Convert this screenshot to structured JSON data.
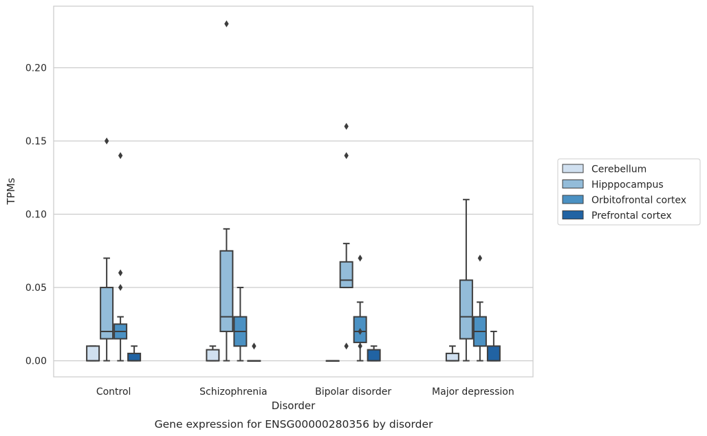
{
  "chart_data": {
    "type": "box",
    "caption": "Gene expression for ENSG00000280356 by disorder",
    "xlabel": "Disorder",
    "ylabel": "TPMs",
    "ylim": [
      -0.011,
      0.242
    ],
    "yticks": [
      "0.00",
      "0.05",
      "0.10",
      "0.15",
      "0.20"
    ],
    "grid": true,
    "legend_position": "right-center",
    "categories": [
      "Control",
      "Schizophrenia",
      "Bipolar disorder",
      "Major depression"
    ],
    "series": [
      {
        "name": "Cerebellum",
        "color": "#d0e0f0",
        "boxes": [
          {
            "q1": 0.0,
            "median": 0.0,
            "q3": 0.01,
            "whisker_low": 0.0,
            "whisker_high": 0.01,
            "outliers": []
          },
          {
            "q1": 0.0,
            "median": 0.0,
            "q3": 0.0075,
            "whisker_low": 0.0,
            "whisker_high": 0.01,
            "outliers": []
          },
          {
            "q1": 0.0,
            "median": 0.0,
            "q3": 0.0,
            "whisker_low": 0.0,
            "whisker_high": 0.0,
            "outliers": []
          },
          {
            "q1": 0.0,
            "median": 0.0,
            "q3": 0.005,
            "whisker_low": 0.0,
            "whisker_high": 0.01,
            "outliers": []
          }
        ]
      },
      {
        "name": "Hipppocampus",
        "color": "#93bcd9",
        "boxes": [
          {
            "q1": 0.015,
            "median": 0.02,
            "q3": 0.05,
            "whisker_low": 0.0,
            "whisker_high": 0.07,
            "outliers": [
              0.15
            ]
          },
          {
            "q1": 0.02,
            "median": 0.03,
            "q3": 0.075,
            "whisker_low": 0.0,
            "whisker_high": 0.09,
            "outliers": [
              0.23
            ]
          },
          {
            "q1": 0.05,
            "median": 0.055,
            "q3": 0.0675,
            "whisker_low": 0.05,
            "whisker_high": 0.08,
            "outliers": [
              0.16,
              0.14,
              0.01
            ]
          },
          {
            "q1": 0.015,
            "median": 0.03,
            "q3": 0.055,
            "whisker_low": 0.0,
            "whisker_high": 0.11,
            "outliers": []
          }
        ]
      },
      {
        "name": "Orbitofrontal cortex",
        "color": "#4b91c3",
        "boxes": [
          {
            "q1": 0.015,
            "median": 0.02,
            "q3": 0.025,
            "whisker_low": 0.0,
            "whisker_high": 0.03,
            "outliers": [
              0.14,
              0.06,
              0.05
            ]
          },
          {
            "q1": 0.01,
            "median": 0.02,
            "q3": 0.03,
            "whisker_low": 0.0,
            "whisker_high": 0.05,
            "outliers": []
          },
          {
            "q1": 0.0125,
            "median": 0.02,
            "q3": 0.03,
            "whisker_low": 0.0,
            "whisker_high": 0.04,
            "outliers": [
              0.07,
              0.02,
              0.01
            ]
          },
          {
            "q1": 0.01,
            "median": 0.02,
            "q3": 0.03,
            "whisker_low": 0.0,
            "whisker_high": 0.04,
            "outliers": [
              0.07
            ]
          }
        ]
      },
      {
        "name": "Prefrontal cortex",
        "color": "#2163a3",
        "boxes": [
          {
            "q1": 0.0,
            "median": 0.0,
            "q3": 0.005,
            "whisker_low": 0.0,
            "whisker_high": 0.01,
            "outliers": []
          },
          {
            "q1": 0.0,
            "median": 0.0,
            "q3": 0.0,
            "whisker_low": 0.0,
            "whisker_high": 0.0,
            "outliers": [
              0.01
            ]
          },
          {
            "q1": 0.0,
            "median": 0.0,
            "q3": 0.0075,
            "whisker_low": 0.0,
            "whisker_high": 0.01,
            "outliers": []
          },
          {
            "q1": 0.0,
            "median": 0.0,
            "q3": 0.01,
            "whisker_low": 0.0,
            "whisker_high": 0.02,
            "outliers": []
          }
        ]
      }
    ]
  }
}
